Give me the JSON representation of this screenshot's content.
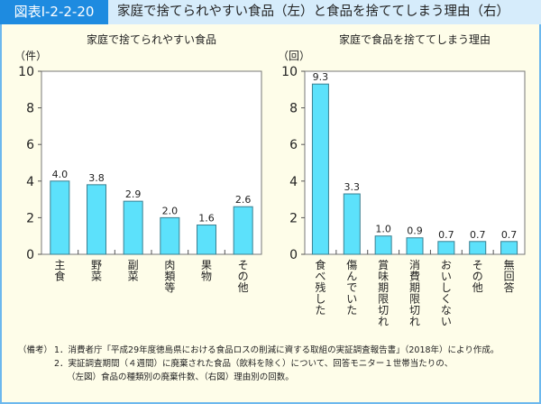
{
  "header": {
    "figure_id": "図表Ⅰ-2-2-20",
    "title": "家庭で捨てられやすい食品（左）と食品を捨ててしまう理由（右）"
  },
  "chart_data": [
    {
      "type": "bar",
      "title": "家庭で捨てられやすい食品",
      "ylabel": "（件）",
      "ylim": [
        0,
        10
      ],
      "yticks": [
        0,
        2,
        4,
        6,
        8,
        10
      ],
      "categories": [
        "主食",
        "野菜",
        "副菜",
        "肉類等",
        "果物",
        "その他"
      ],
      "values": [
        4.0,
        3.8,
        2.9,
        2.0,
        1.6,
        2.6
      ],
      "data_labels": [
        "4.0",
        "3.8",
        "2.9",
        "2.0",
        "1.6",
        "2.6"
      ],
      "bar_color": "#5ce1fb",
      "grid": false
    },
    {
      "type": "bar",
      "title": "家庭で食品を捨ててしまう理由",
      "ylabel": "（回）",
      "ylim": [
        0,
        10
      ],
      "yticks": [
        0,
        2,
        4,
        6,
        8,
        10
      ],
      "categories": [
        "食べ残した",
        "傷んでいた",
        "賞味期限切れ",
        "消費期限切れ",
        "おいしくない",
        "その他",
        "無回答"
      ],
      "values": [
        9.3,
        3.3,
        1.0,
        0.9,
        0.7,
        0.7,
        0.7
      ],
      "data_labels": [
        "9.3",
        "3.3",
        "1.0",
        "0.9",
        "0.7",
        "0.7",
        "0.7"
      ],
      "bar_color": "#5ce1fb",
      "grid": false
    }
  ],
  "notes": {
    "label": "（備考）",
    "items": [
      "1．消費者庁「平成29年度徳島県における食品ロスの削減に資する取組の実証調査報告書」（2018年）により作成。",
      "2．実証調査期間（４週間）に廃棄された食品（飲料を除く）について、回答モニター１世帯当たりの、",
      "（左図）食品の種類別の廃棄件数、（右図）理由別の回数。"
    ]
  }
}
